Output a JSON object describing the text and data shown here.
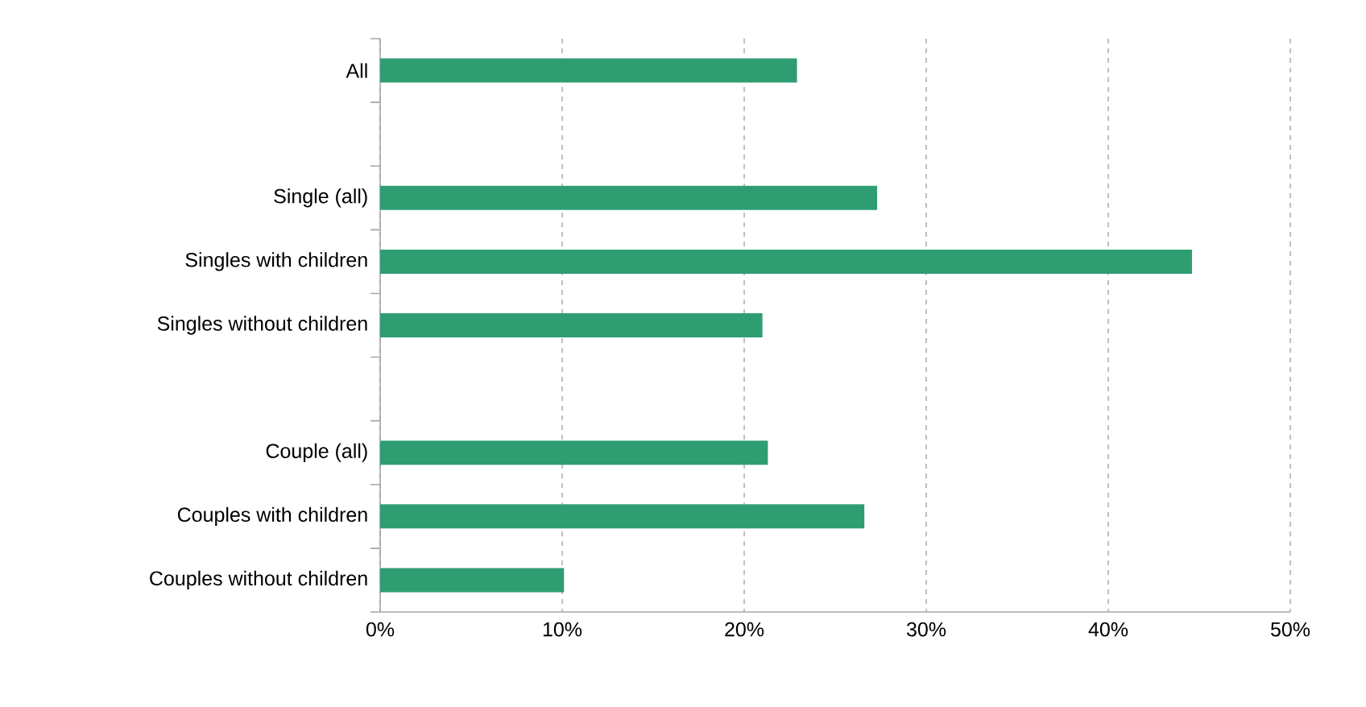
{
  "chart_data": {
    "type": "bar",
    "orientation": "horizontal",
    "categories": [
      "All",
      null,
      "Single (all)",
      "Singles with children",
      "Singles without children",
      null,
      "Couple (all)",
      "Couples with children",
      "Couples without children"
    ],
    "values": [
      22.9,
      null,
      27.3,
      44.6,
      21.0,
      null,
      21.3,
      26.6,
      10.1
    ],
    "color": "#2e9e72",
    "xlim": [
      0,
      50
    ],
    "xticks": [
      {
        "value": 0,
        "label": "0%"
      },
      {
        "value": 10,
        "label": "10%"
      },
      {
        "value": 20,
        "label": "20%"
      },
      {
        "value": 30,
        "label": "30%"
      },
      {
        "value": 40,
        "label": "40%"
      },
      {
        "value": 50,
        "label": "50%"
      }
    ],
    "grid": "x"
  }
}
